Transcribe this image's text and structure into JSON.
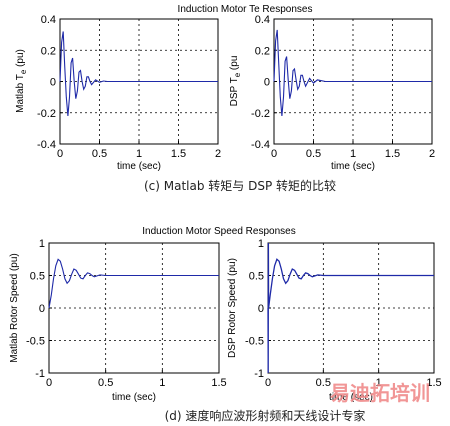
{
  "chart_data": [
    {
      "type": "line",
      "title": "Induction Motor Te Responses",
      "xlabel": "time (sec)",
      "ylabel": "Matlab T",
      "ylabel_sub": "e",
      "ylabel_unit": "(pu)",
      "xlim": [
        0,
        2
      ],
      "ylim": [
        -0.4,
        0.4
      ],
      "xticks": [
        "0",
        "0.5",
        "1",
        "1.5",
        "2"
      ],
      "yticks": [
        "-0.4",
        "-0.2",
        "0",
        "0.2",
        "0.4"
      ],
      "grid": true,
      "series": [
        {
          "color": "#1f2aa8",
          "x": [
            0,
            0.02,
            0.04,
            0.06,
            0.08,
            0.1,
            0.12,
            0.14,
            0.16,
            0.18,
            0.2,
            0.22,
            0.24,
            0.26,
            0.28,
            0.3,
            0.32,
            0.34,
            0.36,
            0.38,
            0.4,
            0.45,
            0.5,
            0.55,
            0.6,
            1,
            1.5,
            2
          ],
          "y": [
            0,
            0.25,
            0.32,
            0.1,
            -0.1,
            -0.22,
            -0.1,
            0.12,
            0.15,
            0.0,
            -0.11,
            -0.06,
            0.06,
            0.07,
            0.0,
            -0.05,
            -0.03,
            0.03,
            0.03,
            0.0,
            -0.02,
            0.01,
            -0.005,
            0.003,
            0,
            0,
            0,
            0
          ]
        }
      ]
    },
    {
      "type": "line",
      "title": "",
      "xlabel": "time (sec)",
      "ylabel": "DSP T",
      "ylabel_sub": "e",
      "ylabel_unit": "(pu",
      "xlim": [
        0,
        2
      ],
      "ylim": [
        -0.4,
        0.4
      ],
      "xticks": [
        "0",
        "0.5",
        "1",
        "1.5",
        "2"
      ],
      "yticks": [
        "-0.4",
        "-0.2",
        "0",
        "0.2",
        "0.4"
      ],
      "grid": true,
      "series": [
        {
          "color": "#1f2aa8",
          "x": [
            0,
            0.02,
            0.04,
            0.06,
            0.08,
            0.1,
            0.12,
            0.14,
            0.16,
            0.18,
            0.2,
            0.22,
            0.24,
            0.26,
            0.28,
            0.3,
            0.32,
            0.34,
            0.36,
            0.38,
            0.4,
            0.45,
            0.5,
            0.55,
            0.6,
            0.65,
            1,
            1.5,
            2
          ],
          "y": [
            0,
            0.26,
            0.33,
            0.12,
            -0.1,
            -0.22,
            -0.1,
            0.13,
            0.16,
            0.01,
            -0.11,
            -0.06,
            0.07,
            0.08,
            0.01,
            -0.05,
            -0.03,
            0.04,
            0.04,
            0.0,
            -0.03,
            0.02,
            -0.01,
            0.01,
            0.005,
            0,
            0,
            0,
            0
          ]
        }
      ]
    },
    {
      "type": "line",
      "title": "Induction Motor Speed Responses",
      "xlabel": "time (sec)",
      "ylabel": "Matlab Rotor Speed (pu)",
      "xlim": [
        0,
        1.5
      ],
      "ylim": [
        -1,
        1
      ],
      "xticks": [
        "0",
        "0.5",
        "1",
        "1.5"
      ],
      "yticks": [
        "-1",
        "-0.5",
        "0",
        "0.5",
        "1"
      ],
      "grid": true,
      "series": [
        {
          "color": "#1f2aa8",
          "x": [
            0,
            0.02,
            0.04,
            0.06,
            0.08,
            0.1,
            0.12,
            0.14,
            0.16,
            0.18,
            0.2,
            0.22,
            0.24,
            0.26,
            0.28,
            0.3,
            0.32,
            0.34,
            0.36,
            0.38,
            0.4,
            0.45,
            0.5,
            0.55,
            0.6,
            1,
            1.5
          ],
          "y": [
            0,
            0.2,
            0.45,
            0.65,
            0.75,
            0.72,
            0.6,
            0.45,
            0.38,
            0.42,
            0.52,
            0.6,
            0.58,
            0.52,
            0.46,
            0.45,
            0.5,
            0.54,
            0.53,
            0.5,
            0.48,
            0.51,
            0.5,
            0.5,
            0.5,
            0.5,
            0.5
          ]
        }
      ]
    },
    {
      "type": "line",
      "title": "",
      "xlabel": "time (sec)",
      "ylabel": "DSP Rotor Speed (pu)",
      "xlim": [
        0,
        1.5
      ],
      "ylim": [
        -1,
        1
      ],
      "xticks": [
        "0",
        "0.5",
        "1",
        "1.5"
      ],
      "yticks": [
        "-1",
        "-0.5",
        "0",
        "0.5",
        "1"
      ],
      "grid": true,
      "series": [
        {
          "color": "#1f2aa8",
          "x": [
            0,
            0.002,
            0.004,
            0.005,
            0.02,
            0.04,
            0.06,
            0.08,
            0.1,
            0.12,
            0.14,
            0.16,
            0.18,
            0.2,
            0.22,
            0.24,
            0.26,
            0.28,
            0.3,
            0.32,
            0.34,
            0.36,
            0.38,
            0.4,
            0.45,
            0.5,
            0.55,
            0.6,
            1,
            1.5
          ],
          "y": [
            0,
            -1,
            1,
            0,
            0.2,
            0.45,
            0.65,
            0.75,
            0.72,
            0.6,
            0.45,
            0.38,
            0.42,
            0.52,
            0.6,
            0.58,
            0.52,
            0.46,
            0.45,
            0.5,
            0.54,
            0.53,
            0.5,
            0.48,
            0.51,
            0.5,
            0.5,
            0.5,
            0.5,
            0.5
          ]
        }
      ]
    }
  ],
  "captions": {
    "top": "(c)   Matlab 转矩与 DSP 转矩的比较",
    "bottom": "(d)  速度响应波形射频和天线设计专家"
  },
  "watermark": {
    "brand": "易迪拓培训",
    "sub": "射频和天线设计专家"
  }
}
